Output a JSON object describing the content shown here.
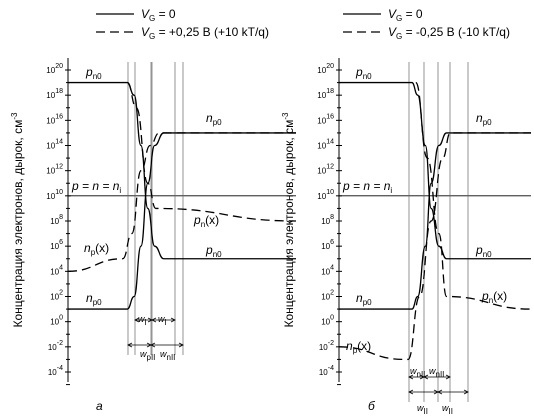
{
  "legend": {
    "left": {
      "solid": [
        "V",
        "G",
        " = 0"
      ],
      "dashed": [
        "V",
        "G",
        " = +0,25 В (+10 kT/q)"
      ]
    },
    "right": {
      "solid": [
        "V",
        "G",
        " = 0"
      ],
      "dashed": [
        "V",
        "G",
        " = -0,25 В (-10 kT/q)"
      ]
    }
  },
  "ylabel": [
    "Концентрация электронов, дырок, см",
    "-3"
  ],
  "intrinsic_label": [
    "p = n = n",
    "i"
  ],
  "panel_labels": [
    "а",
    "б"
  ],
  "chart_data": [
    {
      "type": "line",
      "panel": "а",
      "y_scale": "log10",
      "ylim": [
        1e-05,
        1e+22
      ],
      "yticks": [
        [
          "10",
          "20"
        ],
        [
          "10",
          "18"
        ],
        [
          "10",
          "16"
        ],
        [
          "10",
          "14"
        ],
        [
          "10",
          "12"
        ],
        [
          "10",
          "10"
        ],
        [
          "10",
          "8"
        ],
        [
          "10",
          "6"
        ],
        [
          "10",
          "4"
        ],
        [
          "10",
          "2"
        ],
        [
          "10",
          "0"
        ],
        [
          "10",
          "-2"
        ],
        [
          "10",
          "-4"
        ]
      ],
      "intrinsic_level": 10000000000.0,
      "series": [
        {
          "name": "pn0",
          "style": "solid",
          "points": [
            [
              0,
              1e+19
            ],
            [
              0.26,
              1e+19
            ],
            [
              0.29,
              1e+18
            ],
            [
              0.32,
              100000000000000.0
            ],
            [
              0.35,
              1000000000.0
            ],
            [
              0.38,
              1000000.0
            ],
            [
              0.42,
              100000.0
            ],
            [
              1,
              100000.0
            ]
          ]
        },
        {
          "name": "np0",
          "style": "solid",
          "points": [
            [
              0,
              10.0
            ],
            [
              0.26,
              10.0
            ],
            [
              0.29,
              100.0
            ],
            [
              0.32,
              1000000.0
            ],
            [
              0.35,
              100000000000.0
            ],
            [
              0.38,
              100000000000000.0
            ],
            [
              0.42,
              1000000000000000.0
            ],
            [
              1,
              1000000000000000.0
            ]
          ]
        },
        {
          "name": "pn(x)",
          "style": "dashed",
          "points": [
            [
              0.26,
              1e+19
            ],
            [
              0.3,
              1e+17
            ],
            [
              0.35,
              100000000000.0
            ],
            [
              0.385,
              1000000000.0
            ],
            [
              1,
              100000000.0
            ]
          ]
        },
        {
          "name": "np(x)",
          "style": "dashed",
          "points": [
            [
              0,
              10000.0
            ],
            [
              0.24,
              100000.0
            ],
            [
              0.28,
              10000000.0
            ],
            [
              0.32,
              1000000000000.0
            ],
            [
              0.36,
              100000000000000.0
            ],
            [
              0.4,
              1000000000000000.0
            ],
            [
              1,
              1000000000000000.0
            ]
          ]
        }
      ],
      "curve_labels": [
        {
          "base": "p",
          "sub": "n0",
          "tail": ""
        },
        {
          "base": "n",
          "sub": "p0",
          "tail": ""
        },
        {
          "base": "p",
          "sub": "n",
          "tail": "(x)"
        },
        {
          "base": "n",
          "sub": "p",
          "tail": "(x)"
        },
        {
          "base": "p",
          "sub": "n0",
          "tail": ""
        },
        {
          "base": "n",
          "sub": "p0",
          "tail": ""
        }
      ],
      "width_labels": [
        {
          "base": "w",
          "sub": "I"
        },
        {
          "base": "w",
          "sub": "I"
        },
        {
          "base": "w",
          "sub": "pII"
        },
        {
          "base": "w",
          "sub": "nII"
        }
      ]
    },
    {
      "type": "line",
      "panel": "б",
      "y_scale": "log10",
      "ylim": [
        1e-05,
        1e+22
      ],
      "yticks": [
        [
          "10",
          "20"
        ],
        [
          "10",
          "18"
        ],
        [
          "10",
          "16"
        ],
        [
          "10",
          "14"
        ],
        [
          "10",
          "12"
        ],
        [
          "10",
          "10"
        ],
        [
          "10",
          "8"
        ],
        [
          "10",
          "6"
        ],
        [
          "10",
          "4"
        ],
        [
          "10",
          "2"
        ],
        [
          "10",
          "0"
        ],
        [
          "10",
          "-2"
        ],
        [
          "10",
          "-4"
        ]
      ],
      "intrinsic_level": 10000000000.0,
      "series": [
        {
          "name": "pn0",
          "style": "solid",
          "points": [
            [
              0,
              1e+19
            ],
            [
              0.38,
              1e+19
            ],
            [
              0.41,
              1e+18
            ],
            [
              0.45,
              100000000000000.0
            ],
            [
              0.48,
              1000000000.0
            ],
            [
              0.52,
              1000000.0
            ],
            [
              0.56,
              100000.0
            ],
            [
              1,
              100000.0
            ]
          ]
        },
        {
          "name": "np0",
          "style": "solid",
          "points": [
            [
              0,
              10.0
            ],
            [
              0.38,
              10.0
            ],
            [
              0.41,
              100.0
            ],
            [
              0.45,
              1000000.0
            ],
            [
              0.48,
              100000000000.0
            ],
            [
              0.52,
              100000000000000.0
            ],
            [
              0.56,
              1000000000000000.0
            ],
            [
              1,
              1000000000000000.0
            ]
          ]
        },
        {
          "name": "pn(x)",
          "style": "dashed",
          "points": [
            [
              0.4,
              1e+19
            ],
            [
              0.46,
              10000000000000.0
            ],
            [
              0.52,
              10000000.0
            ],
            [
              0.56,
              100.0
            ],
            [
              1,
              10.0
            ]
          ]
        },
        {
          "name": "np(x)",
          "style": "dashed",
          "points": [
            [
              0,
              0.01
            ],
            [
              0.34,
              0.001
            ],
            [
              0.36,
              0.001
            ],
            [
              0.42,
              100.0
            ],
            [
              0.48,
              100000000.0
            ],
            [
              0.54,
              10000000000000.0
            ],
            [
              0.58,
              1000000000000000.0
            ],
            [
              1,
              1000000000000000.0
            ]
          ]
        }
      ],
      "curve_labels": [
        {
          "base": "p",
          "sub": "n0",
          "tail": ""
        },
        {
          "base": "n",
          "sub": "p0",
          "tail": ""
        },
        {
          "base": "p",
          "sub": "n",
          "tail": "(x)"
        },
        {
          "base": "n",
          "sub": "p",
          "tail": "(x)"
        },
        {
          "base": "p",
          "sub": "n0",
          "tail": ""
        },
        {
          "base": "n",
          "sub": "p0",
          "tail": ""
        }
      ],
      "width_labels": [
        {
          "base": "w",
          "sub": "nII"
        },
        {
          "base": "w",
          "sub": "nII"
        },
        {
          "base": "w",
          "sub": "II"
        },
        {
          "base": "w",
          "sub": "II"
        }
      ]
    }
  ]
}
